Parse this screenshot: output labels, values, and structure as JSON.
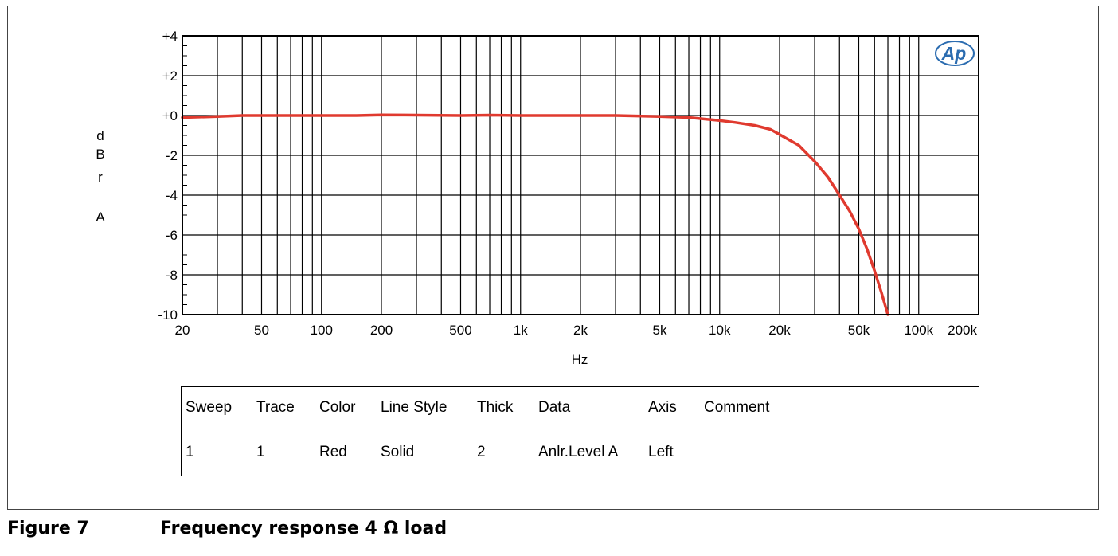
{
  "chart_data": {
    "type": "line",
    "x_scale": "log",
    "xlim": [
      20,
      200000
    ],
    "ylim": [
      -10,
      4
    ],
    "x_ticks": [
      20,
      50,
      100,
      200,
      500,
      1000,
      2000,
      5000,
      10000,
      20000,
      50000,
      100000,
      200000
    ],
    "x_tick_labels": [
      "20",
      "50",
      "100",
      "200",
      "500",
      "1k",
      "2k",
      "5k",
      "10k",
      "20k",
      "50k",
      "100k",
      "200k"
    ],
    "y_ticks": [
      4,
      2,
      0,
      -2,
      -4,
      -6,
      -8,
      -10
    ],
    "y_tick_labels": [
      "+4",
      "+2",
      "+0",
      "-2",
      "-4",
      "-6",
      "-8",
      "-10"
    ],
    "xlabel": "Hz",
    "ylabel": "dBr A",
    "grid": true,
    "series": [
      {
        "color": "#e03a2f",
        "points": [
          [
            20,
            -0.1
          ],
          [
            30,
            -0.05
          ],
          [
            40,
            0.0
          ],
          [
            50,
            0.0
          ],
          [
            70,
            0.0
          ],
          [
            100,
            0.0
          ],
          [
            150,
            0.0
          ],
          [
            200,
            0.03
          ],
          [
            300,
            0.02
          ],
          [
            500,
            0.0
          ],
          [
            700,
            0.02
          ],
          [
            1000,
            0.0
          ],
          [
            2000,
            0.0
          ],
          [
            3000,
            0.0
          ],
          [
            5000,
            -0.05
          ],
          [
            7000,
            -0.1
          ],
          [
            10000,
            -0.25
          ],
          [
            12000,
            -0.35
          ],
          [
            15000,
            -0.5
          ],
          [
            18000,
            -0.7
          ],
          [
            20000,
            -0.95
          ],
          [
            25000,
            -1.5
          ],
          [
            30000,
            -2.3
          ],
          [
            35000,
            -3.1
          ],
          [
            40000,
            -4.0
          ],
          [
            45000,
            -4.8
          ],
          [
            50000,
            -5.7
          ],
          [
            55000,
            -6.7
          ],
          [
            60000,
            -7.8
          ],
          [
            65000,
            -8.9
          ],
          [
            70000,
            -10.0
          ]
        ]
      }
    ]
  },
  "logo_text": "Ap",
  "legend_table": {
    "headers": [
      "Sweep",
      "Trace",
      "Color",
      "Line Style",
      "Thick",
      "Data",
      "Axis",
      "Comment"
    ],
    "row": [
      "1",
      "1",
      "Red",
      "Solid",
      "2",
      "Anlr.Level A",
      "Left",
      ""
    ]
  },
  "caption": {
    "label": "Figure 7",
    "title": "Frequency response 4 Ω load"
  }
}
